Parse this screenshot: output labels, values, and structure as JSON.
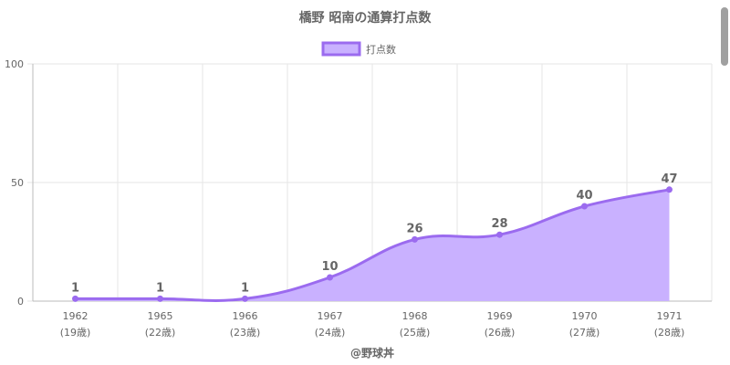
{
  "chart_data": {
    "type": "area",
    "title": "橋野 昭南の通算打点数",
    "legend": {
      "label": "打点数",
      "position": "top"
    },
    "categories": [
      "1962",
      "1965",
      "1966",
      "1967",
      "1968",
      "1969",
      "1970",
      "1971"
    ],
    "sublabels": [
      "(19歳)",
      "(22歳)",
      "(23歳)",
      "(24歳)",
      "(25歳)",
      "(26歳)",
      "(27歳)",
      "(28歳)"
    ],
    "series": [
      {
        "name": "打点数",
        "values": [
          1,
          1,
          1,
          10,
          26,
          28,
          40,
          47
        ]
      }
    ],
    "ylim": [
      0,
      100
    ],
    "yticks": [
      "0",
      "50",
      "100"
    ],
    "grid": true,
    "colors": {
      "line": "#9b6bef",
      "fill": "#c9b1ff"
    }
  },
  "footer": {
    "credit": "@野球丼"
  }
}
